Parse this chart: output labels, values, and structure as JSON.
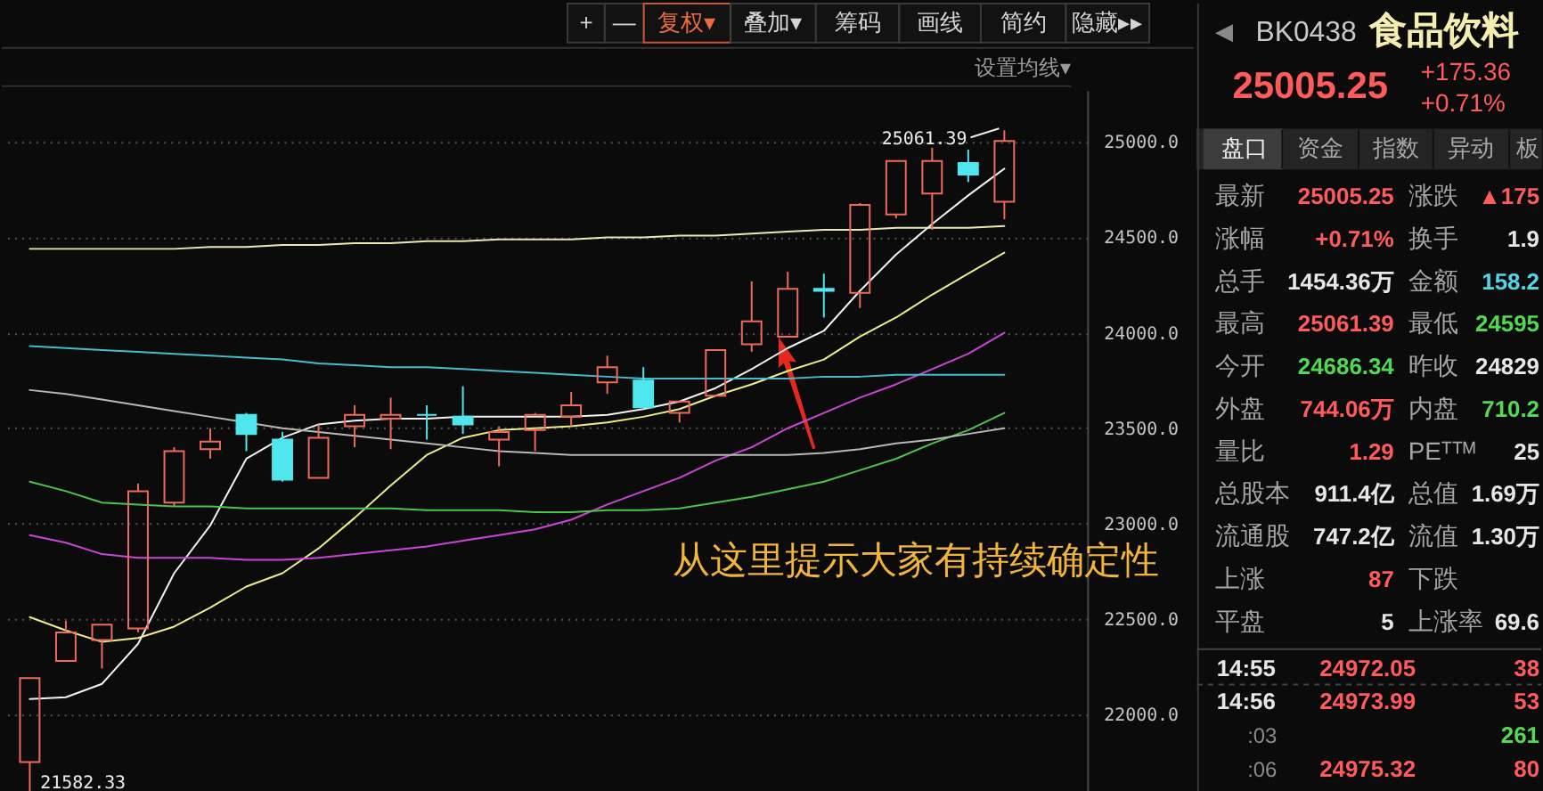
{
  "chart_data": [
    {
      "type": "candlestick",
      "categories": [
        null,
        null,
        null,
        null,
        null,
        null,
        null,
        null,
        null,
        null,
        null,
        null,
        null,
        null,
        null,
        null,
        null,
        null,
        null,
        null,
        null,
        null,
        null,
        null,
        null,
        null,
        null,
        null
      ],
      "ohlc": [
        [
          21750,
          22190,
          21582.33,
          22190
        ],
        [
          22280,
          22490,
          22280,
          22430
        ],
        [
          22390,
          22470,
          22240,
          22470
        ],
        [
          22450,
          23210,
          22430,
          23170
        ],
        [
          23110,
          23400,
          23090,
          23380
        ],
        [
          23390,
          23500,
          23340,
          23430
        ],
        [
          23570,
          23580,
          23380,
          23470
        ],
        [
          23440,
          23480,
          23220,
          23230
        ],
        [
          23240,
          23520,
          23240,
          23450
        ],
        [
          23510,
          23620,
          23400,
          23570
        ],
        [
          23550,
          23660,
          23390,
          23570
        ],
        [
          23570,
          23620,
          23440,
          23570
        ],
        [
          23560,
          23720,
          23470,
          23520
        ],
        [
          23440,
          23510,
          23300,
          23480
        ],
        [
          23490,
          23580,
          23380,
          23570
        ],
        [
          23560,
          23690,
          23510,
          23620
        ],
        [
          23740,
          23880,
          23680,
          23820
        ],
        [
          23750,
          23820,
          23610,
          23610
        ],
        [
          23580,
          23640,
          23530,
          23640
        ],
        [
          23670,
          23910,
          23670,
          23910
        ],
        [
          23940,
          24270,
          23900,
          24060
        ],
        [
          23980,
          24320,
          23980,
          24230
        ],
        [
          24230,
          24310,
          24080,
          24220
        ],
        [
          24210,
          24680,
          24130,
          24670
        ],
        [
          24620,
          24900,
          24600,
          24900
        ],
        [
          24730,
          24970,
          24540,
          24900
        ],
        [
          24890,
          24960,
          24790,
          24829
        ],
        [
          24686.34,
          25061.39,
          24595,
          25005.25
        ]
      ],
      "colors": [
        "#ee6a5a",
        "#ee6a5a",
        "#ee6a5a",
        "#ee6a5a",
        "#ee6a5a",
        "#ee6a5a",
        "#4fe6ee",
        "#4fe6ee",
        "#ee6a5a",
        "#ee6a5a",
        "#ee6a5a",
        "#4fe6ee",
        "#4fe6ee",
        "#ee6a5a",
        "#ee6a5a",
        "#ee6a5a",
        "#ee6a5a",
        "#4fe6ee",
        "#ee6a5a",
        "#ee6a5a",
        "#ee6a5a",
        "#ee6a5a",
        "#4fe6ee",
        "#ee6a5a",
        "#ee6a5a",
        "#ee6a5a",
        "#4fe6ee",
        "#ee6a5a"
      ],
      "series": [
        {
          "type": "line",
          "color": "#f2f2f2",
          "values": [
            22080,
            22090,
            22160,
            22370,
            22740,
            22990,
            23340,
            23450,
            23520,
            23540,
            23550,
            23550,
            23560,
            23560,
            23560,
            23560,
            23570,
            23600,
            23640,
            23710,
            23810,
            23920,
            24010,
            24220,
            24410,
            24570,
            24720,
            24860
          ]
        },
        {
          "type": "line",
          "color": "#eded8c",
          "values": [
            22510,
            22440,
            22380,
            22400,
            22460,
            22560,
            22670,
            22740,
            22870,
            23030,
            23200,
            23360,
            23450,
            23490,
            23500,
            23510,
            23530,
            23560,
            23600,
            23670,
            23730,
            23800,
            23860,
            23980,
            24080,
            24200,
            24310,
            24420
          ]
        },
        {
          "type": "line",
          "color": "#cc44d8",
          "values": [
            22940,
            22900,
            22840,
            22820,
            22820,
            22820,
            22810,
            22810,
            22820,
            22840,
            22860,
            22880,
            22910,
            22940,
            22970,
            23020,
            23100,
            23170,
            23240,
            23330,
            23400,
            23500,
            23580,
            23660,
            23730,
            23810,
            23890,
            24000
          ]
        },
        {
          "type": "line",
          "color": "#4cc44c",
          "values": [
            23220,
            23170,
            23110,
            23100,
            23090,
            23090,
            23080,
            23080,
            23080,
            23080,
            23080,
            23070,
            23070,
            23070,
            23060,
            23060,
            23070,
            23070,
            23080,
            23110,
            23140,
            23180,
            23220,
            23280,
            23340,
            23420,
            23490,
            23580
          ]
        },
        {
          "type": "line",
          "color": "#b8b8b8",
          "values": [
            23700,
            23680,
            23650,
            23620,
            23590,
            23560,
            23530,
            23500,
            23480,
            23460,
            23440,
            23420,
            23400,
            23380,
            23370,
            23360,
            23360,
            23360,
            23360,
            23360,
            23360,
            23360,
            23370,
            23390,
            23420,
            23440,
            23470,
            23500
          ]
        },
        {
          "type": "line",
          "color": "#46bccc",
          "values": [
            23930,
            23920,
            23910,
            23900,
            23890,
            23880,
            23870,
            23860,
            23840,
            23830,
            23820,
            23820,
            23810,
            23800,
            23790,
            23780,
            23770,
            23760,
            23760,
            23760,
            23760,
            23760,
            23770,
            23770,
            23780,
            23780,
            23780,
            23780
          ]
        },
        {
          "type": "line",
          "color": "#ece8b4",
          "values": [
            24440,
            24440,
            24440,
            24440,
            24440,
            24450,
            24450,
            24460,
            24460,
            24470,
            24470,
            24480,
            24480,
            24490,
            24490,
            24490,
            24500,
            24500,
            24510,
            24510,
            24520,
            24530,
            24540,
            24540,
            24550,
            24550,
            24550,
            24560
          ]
        }
      ],
      "ylim": [
        21580,
        25270
      ],
      "yticks": [
        {
          "value": 22000,
          "label": "22000.0"
        },
        {
          "value": 22500,
          "label": "22500.0"
        },
        {
          "value": 23000,
          "label": "23000.0"
        },
        {
          "value": 23500,
          "label": "23500.0"
        },
        {
          "value": 24000,
          "label": "24000.0"
        },
        {
          "value": 24500,
          "label": "24500.0"
        },
        {
          "value": 25000,
          "label": "25000.0"
        }
      ],
      "grid": "y",
      "tick_labels": "y",
      "annotations": [
        "+",
        "—",
        "复权▾",
        "叠加▾",
        "筹码",
        "画线",
        "简约",
        "隐藏▸▸",
        "设置均线▾",
        "从这里提示大家有持续确定性",
        "25061.39",
        "21582.33"
      ]
    },
    {
      "type": "other",
      "annotations": [
        "◀",
        "BK0438",
        "食品饮料",
        "25005.25",
        "+175.36",
        "+0.71%",
        "盘口",
        "资金",
        "指数",
        "异动",
        "板",
        "最新",
        "25005.25",
        "涨跌",
        "▲175",
        "涨幅",
        "+0.71%",
        "换手",
        "1.9",
        "总手",
        "1454.36万",
        "金额",
        "158.2",
        "最高",
        "25061.39",
        "最低",
        "24595",
        "今开",
        "24686.34",
        "昨收",
        "24829",
        "外盘",
        "744.06万",
        "内盘",
        "710.2",
        "量比",
        "1.29",
        "PEᵀᵀᴹ",
        "25",
        "总股本",
        "911.4亿",
        "总值",
        "1.69万",
        "流通股",
        "747.2亿",
        "流值",
        "1.30万",
        "上涨",
        "87",
        "下跌",
        "平盘",
        "5",
        "上涨率",
        "69.6",
        "14:55",
        "24972.05",
        "38",
        "14:56",
        "24973.99",
        "53",
        ":03",
        "261",
        ":06",
        "24975.32",
        "80"
      ]
    }
  ]
}
